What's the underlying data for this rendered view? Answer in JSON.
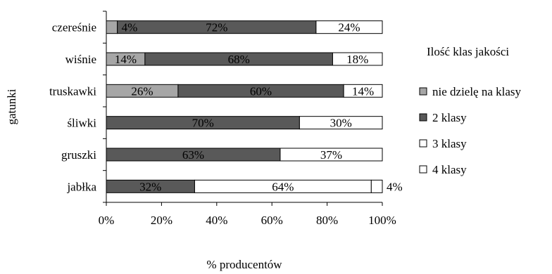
{
  "chart_data": {
    "type": "bar",
    "orientation": "horizontal",
    "stacked": "percent",
    "categories": [
      "czereśnie",
      "wiśnie",
      "truskawki",
      "śliwki",
      "gruszki",
      "jabłka"
    ],
    "series": [
      {
        "name": "nie dzielę na klasy",
        "values": [
          4,
          14,
          26,
          0,
          0,
          0
        ],
        "color": "#a6a6a6"
      },
      {
        "name": "2 klasy",
        "values": [
          72,
          68,
          60,
          70,
          63,
          32
        ],
        "color": "#595959"
      },
      {
        "name": "3 klasy",
        "values": [
          24,
          18,
          14,
          30,
          37,
          64
        ],
        "color": "#ffffff"
      },
      {
        "name": "4 klasy",
        "values": [
          0,
          0,
          0,
          0,
          0,
          4
        ],
        "color": "#ffffff"
      }
    ],
    "data_labels": [
      [
        "4%",
        "72%",
        "24%",
        ""
      ],
      [
        "14%",
        "68%",
        "18%",
        ""
      ],
      [
        "26%",
        "60%",
        "14%",
        ""
      ],
      [
        "",
        "70%",
        "30%",
        ""
      ],
      [
        "",
        "63%",
        "37%",
        ""
      ],
      [
        "",
        "32%",
        "64%",
        "4%"
      ]
    ],
    "xticks": [
      "0%",
      "20%",
      "40%",
      "60%",
      "80%",
      "100%"
    ],
    "xlim": [
      0,
      100
    ],
    "xlabel": "% producentów",
    "ylabel": "gatunki",
    "legend_title": "Ilość klas jakości",
    "legend_position": "right",
    "grid": false
  }
}
